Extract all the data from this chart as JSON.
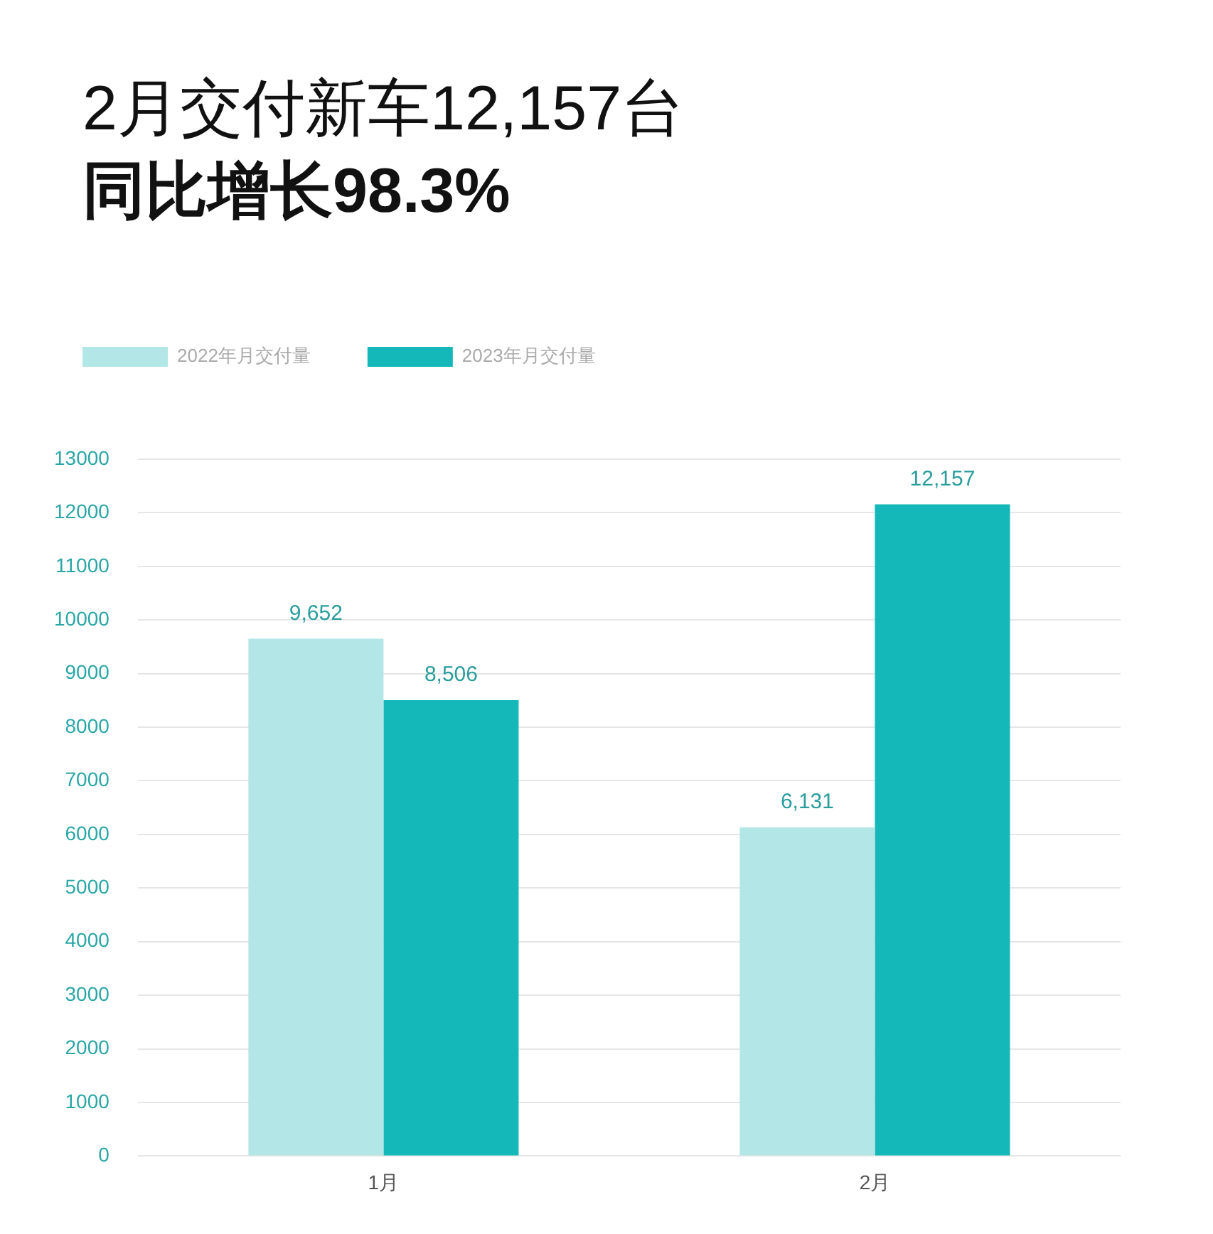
{
  "chart_data": {
    "type": "bar",
    "title": "2月交付新车12,157台",
    "subtitle": "同比增长98.3%",
    "categories": [
      "1月",
      "2月"
    ],
    "series": [
      {
        "name": "2022年月交付量",
        "color": "#b3e6e6",
        "values": [
          9652,
          6131
        ],
        "value_labels": [
          "9,652",
          "6,131"
        ]
      },
      {
        "name": "2023年月交付量",
        "color": "#14b8b8",
        "values": [
          8506,
          12157
        ],
        "value_labels": [
          "8,506",
          "12,157"
        ]
      }
    ],
    "ylim": [
      0,
      13000
    ],
    "yticks": [
      0,
      1000,
      2000,
      3000,
      4000,
      5000,
      6000,
      7000,
      8000,
      9000,
      10000,
      11000,
      12000,
      13000
    ],
    "grid": "y",
    "legend": "top left"
  }
}
